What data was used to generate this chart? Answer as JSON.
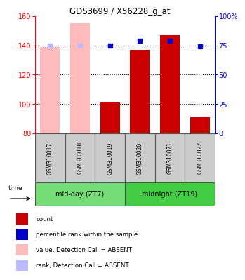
{
  "title": "GDS3699 / X56228_g_at",
  "samples": [
    "GSM310017",
    "GSM310018",
    "GSM310019",
    "GSM310020",
    "GSM310021",
    "GSM310022"
  ],
  "count_values": [
    139,
    155,
    101,
    137,
    147,
    91
  ],
  "rank_values": [
    75,
    75,
    75,
    79,
    79,
    74
  ],
  "absent_flags": [
    true,
    true,
    false,
    false,
    false,
    false
  ],
  "ylim_left": [
    80,
    160
  ],
  "ylim_right": [
    0,
    100
  ],
  "yticks_left": [
    80,
    100,
    120,
    140,
    160
  ],
  "yticks_right": [
    0,
    25,
    50,
    75,
    100
  ],
  "ytick_labels_right": [
    "0",
    "25",
    "50",
    "75",
    "100%"
  ],
  "bar_color_present": "#cc0000",
  "bar_color_absent": "#ffbbbb",
  "rank_color_present": "#0000cc",
  "rank_color_absent": "#bbbbff",
  "group1_label": "mid-day (ZT7)",
  "group2_label": "midnight (ZT19)",
  "group_color": "#77dd77",
  "group_color_dark": "#44cc44",
  "time_label": "time",
  "legend_items": [
    {
      "label": "count",
      "color": "#cc0000"
    },
    {
      "label": "percentile rank within the sample",
      "color": "#0000cc"
    },
    {
      "label": "value, Detection Call = ABSENT",
      "color": "#ffbbbb"
    },
    {
      "label": "rank, Detection Call = ABSENT",
      "color": "#bbbbff"
    }
  ],
  "bar_width": 0.65,
  "rank_marker_size": 5,
  "grid_lines": [
    100,
    120,
    140
  ],
  "label_bg": "#cccccc",
  "label_border": "#555555"
}
